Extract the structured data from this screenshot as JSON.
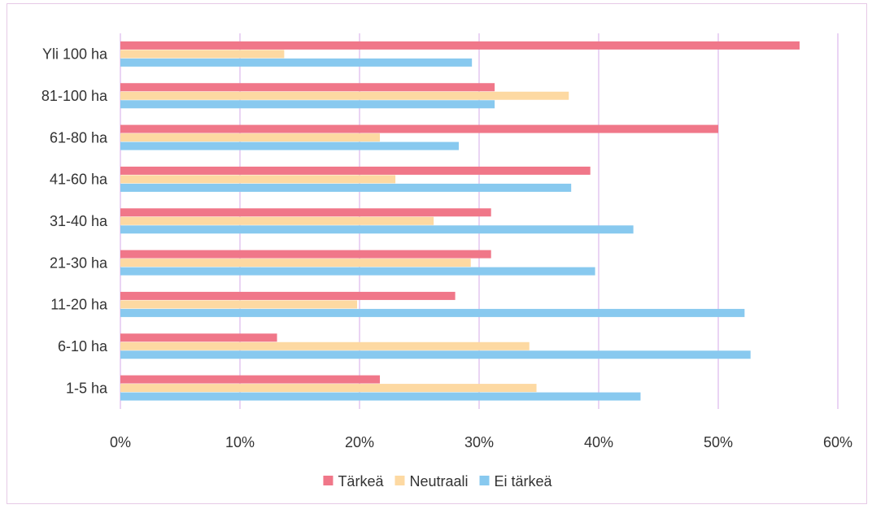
{
  "chart_data": {
    "type": "bar",
    "orientation": "horizontal",
    "categories": [
      "1-5 ha",
      "6-10 ha",
      "11-20 ha",
      "21-30 ha",
      "31-40 ha",
      "41-60 ha",
      "61-80 ha",
      "81-100 ha",
      "Yli 100 ha"
    ],
    "series": [
      {
        "name": "Tärkeä",
        "color": "#f07789",
        "values": [
          0.217,
          0.131,
          0.28,
          0.31,
          0.31,
          0.393,
          0.5,
          0.313,
          0.568
        ]
      },
      {
        "name": "Neutraali",
        "color": "#fdd9a2",
        "values": [
          0.348,
          0.342,
          0.198,
          0.293,
          0.262,
          0.23,
          0.217,
          0.375,
          0.137
        ]
      },
      {
        "name": "Ei tärkeä",
        "color": "#88c9ef",
        "values": [
          0.435,
          0.527,
          0.522,
          0.397,
          0.429,
          0.377,
          0.283,
          0.313,
          0.294
        ]
      }
    ],
    "xlim": [
      0,
      0.6
    ],
    "xticks": [
      0,
      0.1,
      0.2,
      0.3,
      0.4,
      0.5,
      0.6
    ],
    "xtick_labels": [
      "0%",
      "10%",
      "20%",
      "30%",
      "40%",
      "50%",
      "60%"
    ],
    "grid": "vertical",
    "grid_color": "#dcb8ec",
    "legend_position": "bottom",
    "title": "",
    "xlabel": "",
    "ylabel": ""
  }
}
